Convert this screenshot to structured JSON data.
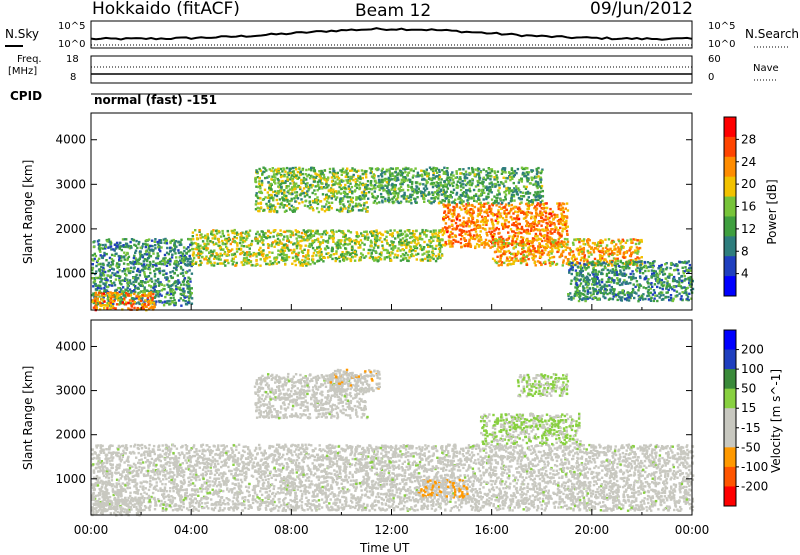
{
  "header": {
    "title": "Hokkaido (fitACF)",
    "beam": "Beam 12",
    "date": "09/Jun/2012"
  },
  "strip": {
    "nsky_label": "N.Sky",
    "nsky_ticks": [
      "10^5",
      "10^0"
    ],
    "nsearch_label": "N.Search",
    "nsearch_ticks": [
      "10^5",
      "10^0"
    ],
    "freq_label": "Freq.",
    "freq_unit": "[MHz]",
    "freq_ticks": [
      "18",
      "8"
    ],
    "nave_label": "Nave",
    "nave_ticks": [
      "60",
      "0"
    ],
    "cpid_label": "CPID",
    "mode_text": "normal (fast) -151"
  },
  "colors": {
    "power_scale": [
      "#0000ff",
      "#1f3fbf",
      "#2e7d7d",
      "#3f9f3f",
      "#77c43a",
      "#f2c200",
      "#ff8c00",
      "#ff4400",
      "#ff0000"
    ],
    "velocity_scale": [
      "#ff0000",
      "#ff5500",
      "#ff9900",
      "#c8c8c0",
      "#c8c8c0",
      "#88d040",
      "#3a8a3a",
      "#1f3fbf",
      "#0000ff"
    ]
  },
  "chart_data": [
    {
      "type": "heatmap",
      "name": "power",
      "ylabel": "Slant Range [km]",
      "ylim": [
        180,
        4600
      ],
      "yticks": [
        "1000",
        "2000",
        "3000",
        "4000"
      ],
      "xlim": [
        "00:00",
        "24:00"
      ],
      "colorbar": {
        "label": "Power [dB]",
        "ticks": [
          "28",
          "24",
          "20",
          "16",
          "12",
          "8",
          "4"
        ],
        "range": [
          0,
          30
        ]
      },
      "scatter_bands": [
        {
          "t0": 0.0,
          "t1": 4.0,
          "r0": 300,
          "r1": 1800,
          "value": 10
        },
        {
          "t0": 0.0,
          "t1": 2.5,
          "r0": 200,
          "r1": 600,
          "value": 22
        },
        {
          "t0": 4.0,
          "t1": 9.0,
          "r0": 1200,
          "r1": 2000,
          "value": 16
        },
        {
          "t0": 6.5,
          "t1": 11.0,
          "r0": 2400,
          "r1": 3400,
          "value": 14
        },
        {
          "t0": 9.0,
          "t1": 14.0,
          "r0": 1300,
          "r1": 2000,
          "value": 15
        },
        {
          "t0": 14.0,
          "t1": 19.0,
          "r0": 1600,
          "r1": 2600,
          "value": 22
        },
        {
          "t0": 16.0,
          "t1": 22.0,
          "r0": 1200,
          "r1": 1800,
          "value": 20
        },
        {
          "t0": 11.0,
          "t1": 18.0,
          "r0": 2600,
          "r1": 3400,
          "value": 12
        },
        {
          "t0": 19.0,
          "t1": 24.0,
          "r0": 400,
          "r1": 1300,
          "value": 10
        }
      ]
    },
    {
      "type": "heatmap",
      "name": "velocity",
      "ylabel": "Slant Range [km]",
      "ylim": [
        180,
        4600
      ],
      "yticks": [
        "1000",
        "2000",
        "3000",
        "4000"
      ],
      "xlim": [
        "00:00",
        "24:00"
      ],
      "xticks": [
        "00:00",
        "04:00",
        "08:00",
        "12:00",
        "16:00",
        "20:00",
        "00:00"
      ],
      "xlabel": "Time UT",
      "colorbar": {
        "label": "Velocity [m s^-1]",
        "ticks": [
          "200",
          "100",
          "50",
          "15",
          "-15",
          "-50",
          "-100",
          "-200"
        ],
        "range": [
          -250,
          250
        ]
      },
      "scatter_bands": [
        {
          "t0": 0.0,
          "t1": 24.0,
          "r0": 300,
          "r1": 1800,
          "value": 0
        },
        {
          "t0": 6.5,
          "t1": 11.0,
          "r0": 2400,
          "r1": 3400,
          "value": 0
        },
        {
          "t0": 9.5,
          "t1": 11.5,
          "r0": 3000,
          "r1": 3500,
          "value": -60
        },
        {
          "t0": 15.5,
          "t1": 19.5,
          "r0": 1800,
          "r1": 2500,
          "value": 30
        },
        {
          "t0": 17.0,
          "t1": 19.0,
          "r0": 2900,
          "r1": 3400,
          "value": 30
        },
        {
          "t0": 13.0,
          "t1": 15.0,
          "r0": 600,
          "r1": 1000,
          "value": -80
        },
        {
          "t0": 0.0,
          "t1": 2.0,
          "r0": 200,
          "r1": 600,
          "value": -40
        }
      ]
    }
  ]
}
